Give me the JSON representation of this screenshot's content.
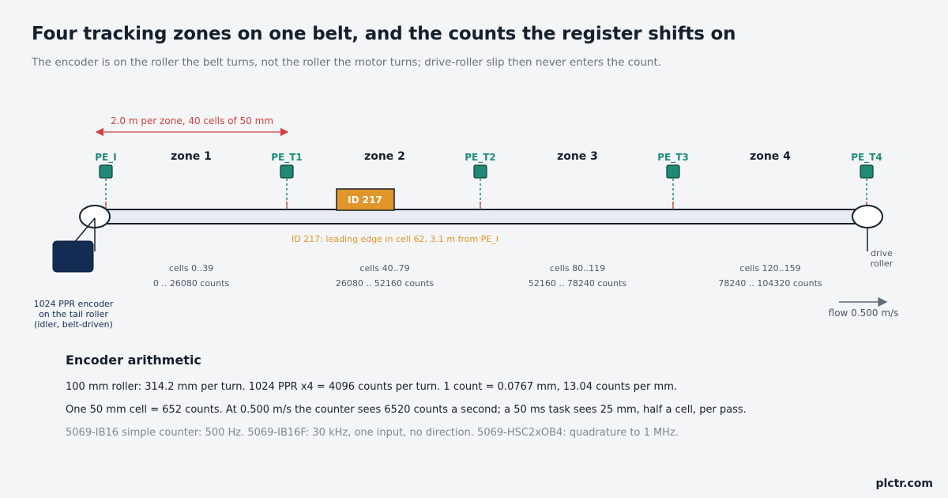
{
  "header": {
    "title": "Four tracking zones on one belt, and the counts the register shifts on",
    "subtitle": "The encoder is on the roller the belt turns, not the roller the motor turns; drive-roller slip then never enters the count."
  },
  "diagram": {
    "dimension_label": "2.0 m per zone, 40 cells of 50 mm",
    "sensors": [
      "PE_I",
      "PE_T1",
      "PE_T2",
      "PE_T3",
      "PE_T4"
    ],
    "zones": [
      {
        "name": "zone 1",
        "cells": "cells 0..39",
        "counts": "0 .. 26080 counts"
      },
      {
        "name": "zone 2",
        "cells": "cells 40..79",
        "counts": "26080 .. 52160 counts"
      },
      {
        "name": "zone 3",
        "cells": "cells 80..119",
        "counts": "52160 .. 78240 counts"
      },
      {
        "name": "zone 4",
        "cells": "cells 120..159",
        "counts": "78240 .. 104320 counts"
      }
    ],
    "item": {
      "label": "ID 217",
      "annotation": "ID 217: leading edge in cell 62, 3.1 m from PE_I"
    },
    "encoder_label": [
      "1024 PPR encoder",
      "on the tail roller",
      "(idler, belt-driven)"
    ],
    "drive_label": [
      "drive",
      "roller"
    ],
    "flow_label": "flow 0.500 m/s",
    "colors": {
      "sensor": "#1f8a78",
      "item": "#e0962a",
      "dimension": "#d23f3f",
      "encoder": "#132c54",
      "belt_fill": "#e8ecf2"
    }
  },
  "arithmetic": {
    "heading": "Encoder arithmetic",
    "line1": "100 mm roller: 314.2 mm per turn.  1024 PPR x4 = 4096 counts per turn.  1 count = 0.0767 mm, 13.04 counts per mm.",
    "line2": "One 50 mm cell = 652 counts.  At 0.500 m/s the counter sees 6520 counts a second; a 50 ms task sees 25 mm, half a cell, per pass.",
    "line3": "5069-IB16 simple counter: 500 Hz.  5069-IB16F: 30 kHz, one input, no direction.  5069-HSC2xOB4: quadrature to 1 MHz."
  },
  "brand": "plctr.com"
}
